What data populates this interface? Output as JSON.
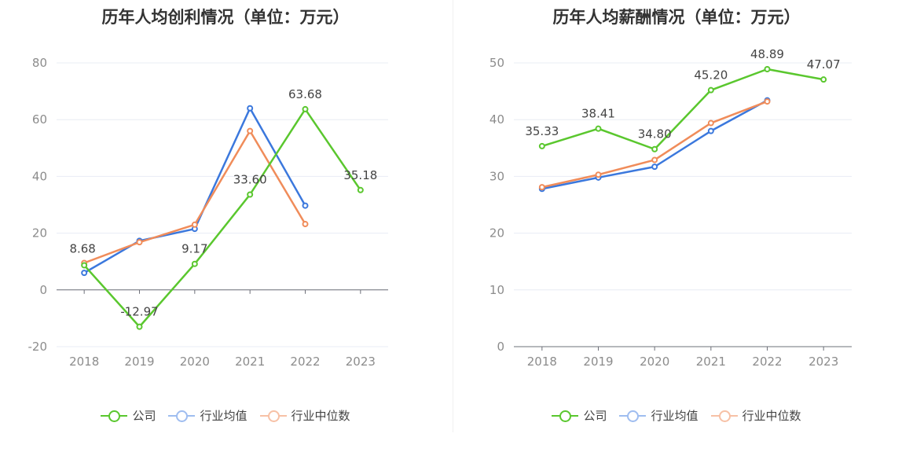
{
  "chart_data": [
    {
      "type": "line",
      "title": "历年人均创利情况（单位：万元）",
      "categories": [
        "2018",
        "2019",
        "2020",
        "2021",
        "2022",
        "2023"
      ],
      "ylim": [
        -20,
        80
      ],
      "yticks": [
        -20,
        0,
        20,
        40,
        60,
        80
      ],
      "grid": true,
      "legend": "bottom-center",
      "series": [
        {
          "name": "公司",
          "color": "#5ac72e",
          "values": [
            8.68,
            -12.97,
            9.17,
            33.6,
            63.68,
            35.18
          ],
          "labels": [
            "8.68",
            "-12.97",
            "9.17",
            "33.60",
            "63.68",
            "35.18"
          ]
        },
        {
          "name": "行业均值",
          "color": "#3b78dd",
          "values": [
            6.0,
            17.3,
            21.5,
            64.0,
            29.7,
            null
          ]
        },
        {
          "name": "行业中位数",
          "color": "#f08c5a",
          "values": [
            9.5,
            16.8,
            23.0,
            56.0,
            23.2,
            null
          ]
        }
      ]
    },
    {
      "type": "line",
      "title": "历年人均薪酬情况（单位：万元）",
      "categories": [
        "2018",
        "2019",
        "2020",
        "2021",
        "2022",
        "2023"
      ],
      "ylim": [
        0,
        50
      ],
      "yticks": [
        0,
        10,
        20,
        30,
        40,
        50
      ],
      "grid": true,
      "legend": "bottom-center",
      "series": [
        {
          "name": "公司",
          "color": "#5ac72e",
          "values": [
            35.33,
            38.41,
            34.8,
            45.2,
            48.89,
            47.07
          ],
          "labels": [
            "35.33",
            "38.41",
            "34.80",
            "45.20",
            "48.89",
            "47.07"
          ]
        },
        {
          "name": "行业均值",
          "color": "#3b78dd",
          "values": [
            27.8,
            29.8,
            31.7,
            38.0,
            43.4,
            null
          ]
        },
        {
          "name": "行业中位数",
          "color": "#f08c5a",
          "values": [
            28.1,
            30.3,
            32.9,
            39.4,
            43.2,
            null
          ]
        }
      ]
    }
  ]
}
